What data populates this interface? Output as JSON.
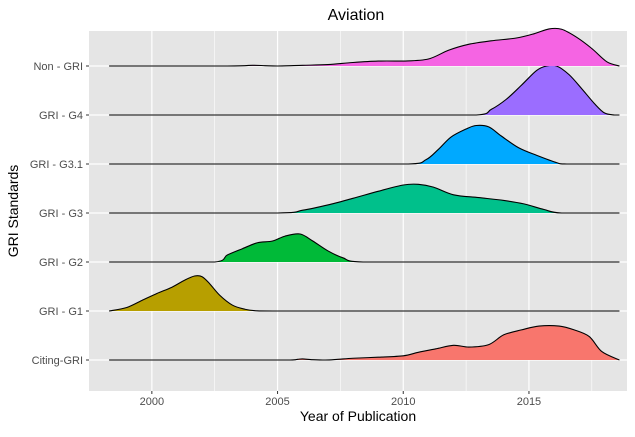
{
  "chart_data": {
    "type": "ridgeline",
    "title": "Aviation",
    "xlabel": "Year of Publication",
    "ylabel": "GRI Standards",
    "xlim": [
      1997.5,
      2018.9
    ],
    "x_ticks": [
      2000,
      2005,
      2010,
      2015
    ],
    "grid": true,
    "legend": "none",
    "colors": {
      "panel_bg": "#e5e5e5",
      "grid": "#ffffff",
      "outline": "#000000"
    },
    "series": [
      {
        "name": "Citing-GRI",
        "color": "#f8766d",
        "x": [
          1998.3,
          2005.5,
          2005.8,
          2006.0,
          2006.4,
          2006.9,
          2007.4,
          2008.0,
          2009.0,
          2010.0,
          2010.6,
          2011.3,
          2012.0,
          2012.6,
          2013.4,
          2014.0,
          2014.7,
          2015.4,
          2016.2,
          2016.8,
          2017.4,
          2017.9,
          2018.6
        ],
        "y": [
          0.0,
          0.0,
          0.02,
          0.03,
          0.01,
          0.0,
          0.02,
          0.05,
          0.08,
          0.12,
          0.22,
          0.32,
          0.42,
          0.37,
          0.44,
          0.72,
          0.86,
          0.97,
          0.97,
          0.86,
          0.67,
          0.24,
          0.0
        ]
      },
      {
        "name": "GRI - G1",
        "color": "#b79f00",
        "x": [
          1998.3,
          1999.0,
          1999.6,
          2000.2,
          2000.8,
          2001.3,
          2001.7,
          2002.0,
          2002.3,
          2002.7,
          2003.2,
          2003.7,
          2004.1,
          2005.0,
          2018.6
        ],
        "y": [
          0.0,
          0.1,
          0.3,
          0.5,
          0.68,
          0.88,
          1.0,
          0.98,
          0.78,
          0.45,
          0.17,
          0.05,
          0.01,
          0.0,
          0.0
        ]
      },
      {
        "name": "GRI - G2",
        "color": "#00ba38",
        "x": [
          1998.3,
          2002.5,
          2003.0,
          2003.6,
          2004.2,
          2004.8,
          2005.3,
          2005.9,
          2006.4,
          2007.0,
          2007.6,
          2008.4,
          2018.6
        ],
        "y": [
          0.0,
          0.0,
          0.2,
          0.38,
          0.55,
          0.6,
          0.74,
          0.8,
          0.6,
          0.32,
          0.12,
          0.0,
          0.0
        ]
      },
      {
        "name": "GRI - G3",
        "color": "#00c08b",
        "x": [
          1998.3,
          2005.0,
          2006.0,
          2007.0,
          2008.0,
          2009.0,
          2010.0,
          2010.6,
          2011.2,
          2012.0,
          2013.0,
          2014.0,
          2014.8,
          2015.6,
          2016.3,
          2018.6
        ],
        "y": [
          0.0,
          0.0,
          0.08,
          0.23,
          0.42,
          0.62,
          0.8,
          0.82,
          0.74,
          0.52,
          0.44,
          0.36,
          0.26,
          0.1,
          0.0,
          0.0
        ]
      },
      {
        "name": "GRI - G3.1",
        "color": "#00a9ff",
        "x": [
          1998.3,
          2010.2,
          2010.9,
          2011.4,
          2011.9,
          2012.5,
          2012.9,
          2013.4,
          2013.9,
          2014.6,
          2015.3,
          2016.1,
          2016.5,
          2018.6
        ],
        "y": [
          0.0,
          0.0,
          0.12,
          0.42,
          0.77,
          1.0,
          1.1,
          1.06,
          0.8,
          0.46,
          0.25,
          0.04,
          0.0,
          0.0
        ]
      },
      {
        "name": "GRI - G4",
        "color": "#9b6dff",
        "x": [
          1998.3,
          2012.9,
          2013.5,
          2014.1,
          2014.7,
          2015.3,
          2015.7,
          2016.1,
          2016.6,
          2017.1,
          2017.6,
          2018.0,
          2018.4,
          2018.6
        ],
        "y": [
          0.0,
          0.0,
          0.16,
          0.45,
          0.85,
          1.27,
          1.4,
          1.4,
          1.15,
          0.75,
          0.33,
          0.06,
          0.0,
          0.0
        ]
      },
      {
        "name": "Non - GRI",
        "color": "#f564e3",
        "x": [
          1998.3,
          2003.0,
          2004.0,
          2004.5,
          2005.0,
          2006.0,
          2007.0,
          2008.0,
          2009.0,
          2010.0,
          2011.0,
          2011.8,
          2012.6,
          2013.5,
          2014.5,
          2015.2,
          2015.8,
          2016.3,
          2016.9,
          2017.5,
          2018.1,
          2018.6
        ],
        "y": [
          0.0,
          0.0,
          0.02,
          0.01,
          0.0,
          0.02,
          0.04,
          0.1,
          0.14,
          0.14,
          0.2,
          0.45,
          0.62,
          0.72,
          0.8,
          0.92,
          1.06,
          1.05,
          0.82,
          0.5,
          0.12,
          0.0
        ]
      }
    ]
  }
}
